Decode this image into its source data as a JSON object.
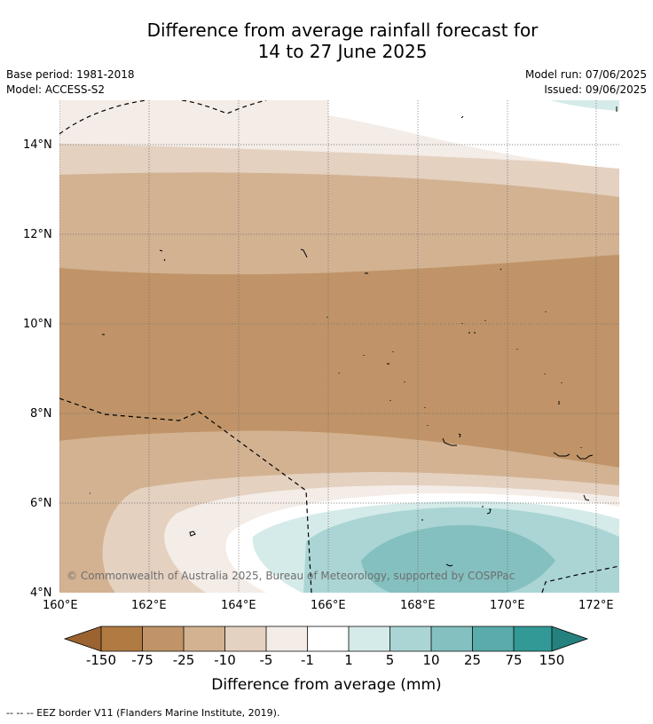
{
  "title": {
    "line1": "Difference from average rainfall forecast for",
    "line2": "14 to 27 June 2025"
  },
  "meta": {
    "base_period": "Base period: 1981-2018",
    "model": "Model: ACCESS-S2",
    "model_run": "Model run: 07/06/2025",
    "issued": "Issued: 09/06/2025"
  },
  "map": {
    "lon_range": [
      160,
      172.5
    ],
    "lat_range": [
      4,
      15
    ],
    "x_ticks": [
      "160°E",
      "162°E",
      "164°E",
      "166°E",
      "168°E",
      "170°E",
      "172°E"
    ],
    "y_ticks": [
      "14°N",
      "12°N",
      "10°N",
      "8°N",
      "6°N",
      "4°N"
    ],
    "copyright": "© Commonwealth of Australia 2025, Bureau of Meteorology, supported by COSPPac"
  },
  "colorbar": {
    "labels": [
      "-150",
      "-75",
      "-25",
      "-10",
      "-5",
      "-1",
      "1",
      "5",
      "10",
      "25",
      "75",
      "150"
    ],
    "colors": [
      "#9b6330",
      "#b07b42",
      "#c09468",
      "#d3b292",
      "#e4d1c0",
      "#f4ece6",
      "#ffffff",
      "#d5ebe9",
      "#aad5d4",
      "#84c0bf",
      "#59acaa",
      "#329996",
      "#25817d"
    ],
    "title": "Difference from average (mm)"
  },
  "legend": {
    "eez_note": "--  --  -- EEZ border V11 (Flanders Marine Institute, 2019)."
  }
}
